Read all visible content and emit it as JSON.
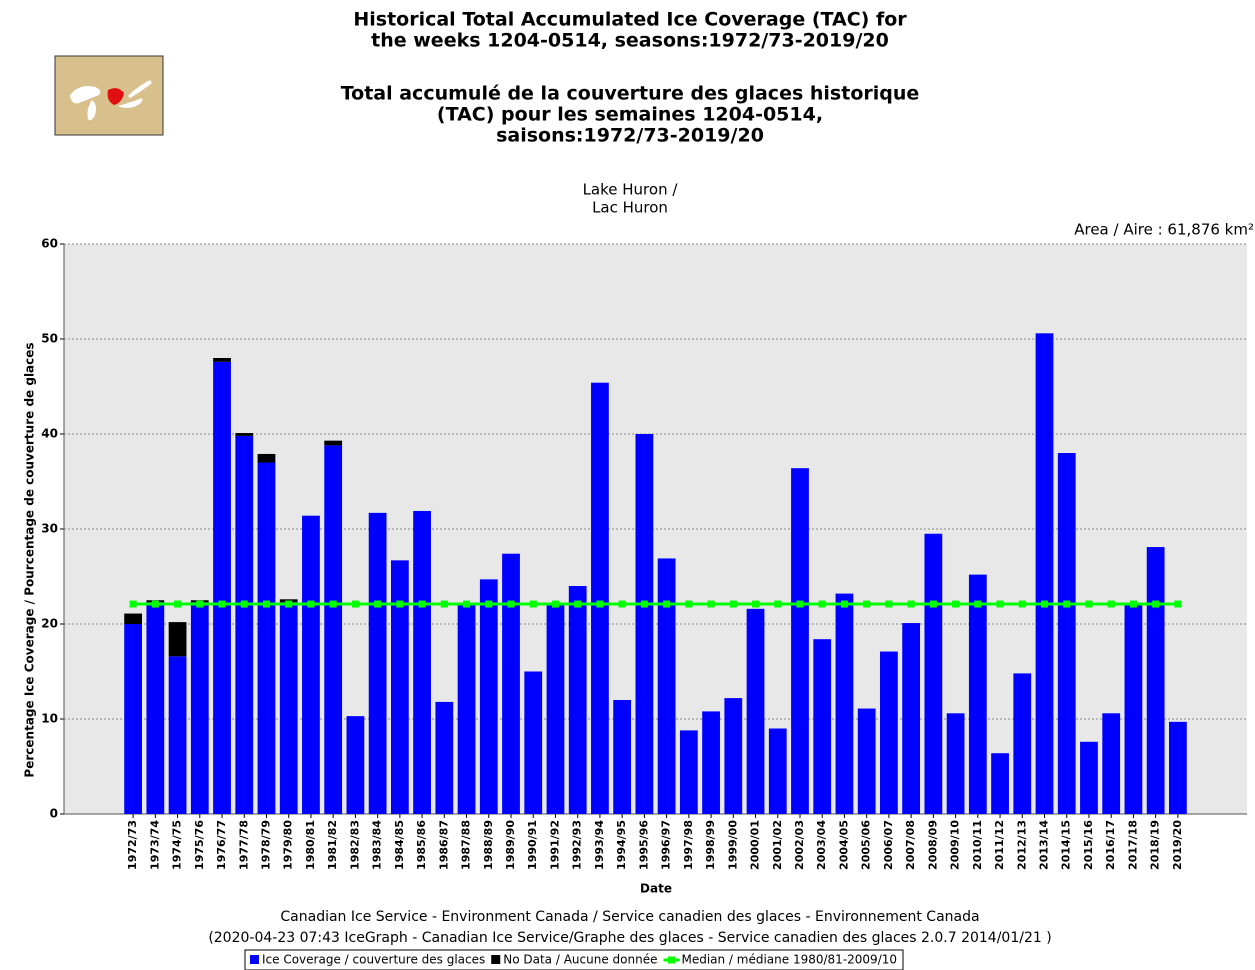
{
  "chart_data": {
    "type": "bar",
    "title": [
      "Historical Total Accumulated Ice Coverage (TAC) for",
      "the weeks 1204-0514, seasons:1972/73-2019/20"
    ],
    "title_fr": [
      "Total accumulé de la couverture des glaces historique",
      "(TAC) pour les semaines 1204-0514,",
      "saisons:1972/73-2019/20"
    ],
    "subtitle": [
      "Lake Huron /",
      "Lac Huron"
    ],
    "annotation": "Area / Aire : 61,876 km²",
    "y_label": "Percentage Ice Coverage / Pourcentage de couverture de glaces",
    "x_label": "Date",
    "footer": [
      "Canadian Ice Service - Environment Canada / Service canadien des glaces - Environnement Canada",
      "(2020-04-23 07:43 IceGraph - Canadian Ice Service/Graphe des glaces - Service canadien des glaces 2.0.7 2014/01/21 )"
    ],
    "categories": [
      "1972/73",
      "1973/74",
      "1974/75",
      "1975/76",
      "1976/77",
      "1977/78",
      "1978/79",
      "1979/80",
      "1980/81",
      "1981/82",
      "1982/83",
      "1983/84",
      "1984/85",
      "1985/86",
      "1986/87",
      "1987/88",
      "1988/89",
      "1989/90",
      "1990/91",
      "1991/92",
      "1992/93",
      "1993/94",
      "1994/95",
      "1995/96",
      "1996/97",
      "1997/98",
      "1998/99",
      "1999/00",
      "2000/01",
      "2001/02",
      "2002/03",
      "2003/04",
      "2004/05",
      "2005/06",
      "2006/07",
      "2007/08",
      "2008/09",
      "2009/10",
      "2010/11",
      "2011/12",
      "2012/13",
      "2013/14",
      "2014/15",
      "2015/16",
      "2016/17",
      "2017/18",
      "2018/19",
      "2019/20"
    ],
    "series": [
      {
        "name": "Ice Coverage / couverture des glaces",
        "color": "#0000ff",
        "stacked": true,
        "values": [
          20.0,
          22.3,
          16.6,
          22.3,
          47.6,
          39.8,
          37.0,
          22.3,
          31.4,
          38.8,
          10.3,
          31.7,
          26.7,
          31.9,
          11.8,
          22.0,
          24.7,
          27.4,
          15.0,
          22.1,
          24.0,
          45.4,
          12.0,
          40.0,
          26.9,
          8.8,
          10.8,
          12.2,
          21.6,
          9.0,
          36.4,
          18.4,
          23.2,
          11.1,
          17.1,
          20.1,
          29.5,
          10.6,
          25.2,
          6.4,
          14.8,
          50.6,
          38.0,
          7.6,
          10.6,
          22.0,
          28.1,
          9.7
        ]
      },
      {
        "name": "No Data / Aucune donnée",
        "color": "#000000",
        "stacked": true,
        "values": [
          1.1,
          0.2,
          3.6,
          0.2,
          0.4,
          0.3,
          0.9,
          0.3,
          0,
          0.5,
          0,
          0,
          0,
          0,
          0,
          0,
          0,
          0,
          0,
          0,
          0,
          0,
          0,
          0,
          0,
          0,
          0,
          0,
          0,
          0,
          0,
          0,
          0,
          0,
          0,
          0,
          0,
          0,
          0,
          0,
          0,
          0,
          0,
          0,
          0,
          0,
          0,
          0
        ]
      },
      {
        "name": "Median / médiane 1980/81-2009/10",
        "color": "#00ff00",
        "type": "line",
        "values": [
          22.1,
          22.1,
          22.1,
          22.1,
          22.1,
          22.1,
          22.1,
          22.1,
          22.1,
          22.1,
          22.1,
          22.1,
          22.1,
          22.1,
          22.1,
          22.1,
          22.1,
          22.1,
          22.1,
          22.1,
          22.1,
          22.1,
          22.1,
          22.1,
          22.1,
          22.1,
          22.1,
          22.1,
          22.1,
          22.1,
          22.1,
          22.1,
          22.1,
          22.1,
          22.1,
          22.1,
          22.1,
          22.1,
          22.1,
          22.1,
          22.1,
          22.1,
          22.1,
          22.1,
          22.1,
          22.1,
          22.1,
          22.1
        ]
      }
    ],
    "ylim": [
      0,
      60
    ],
    "yticks": [
      0,
      10,
      20,
      30,
      40,
      50,
      60
    ],
    "grid": true,
    "legend": "bottom"
  }
}
